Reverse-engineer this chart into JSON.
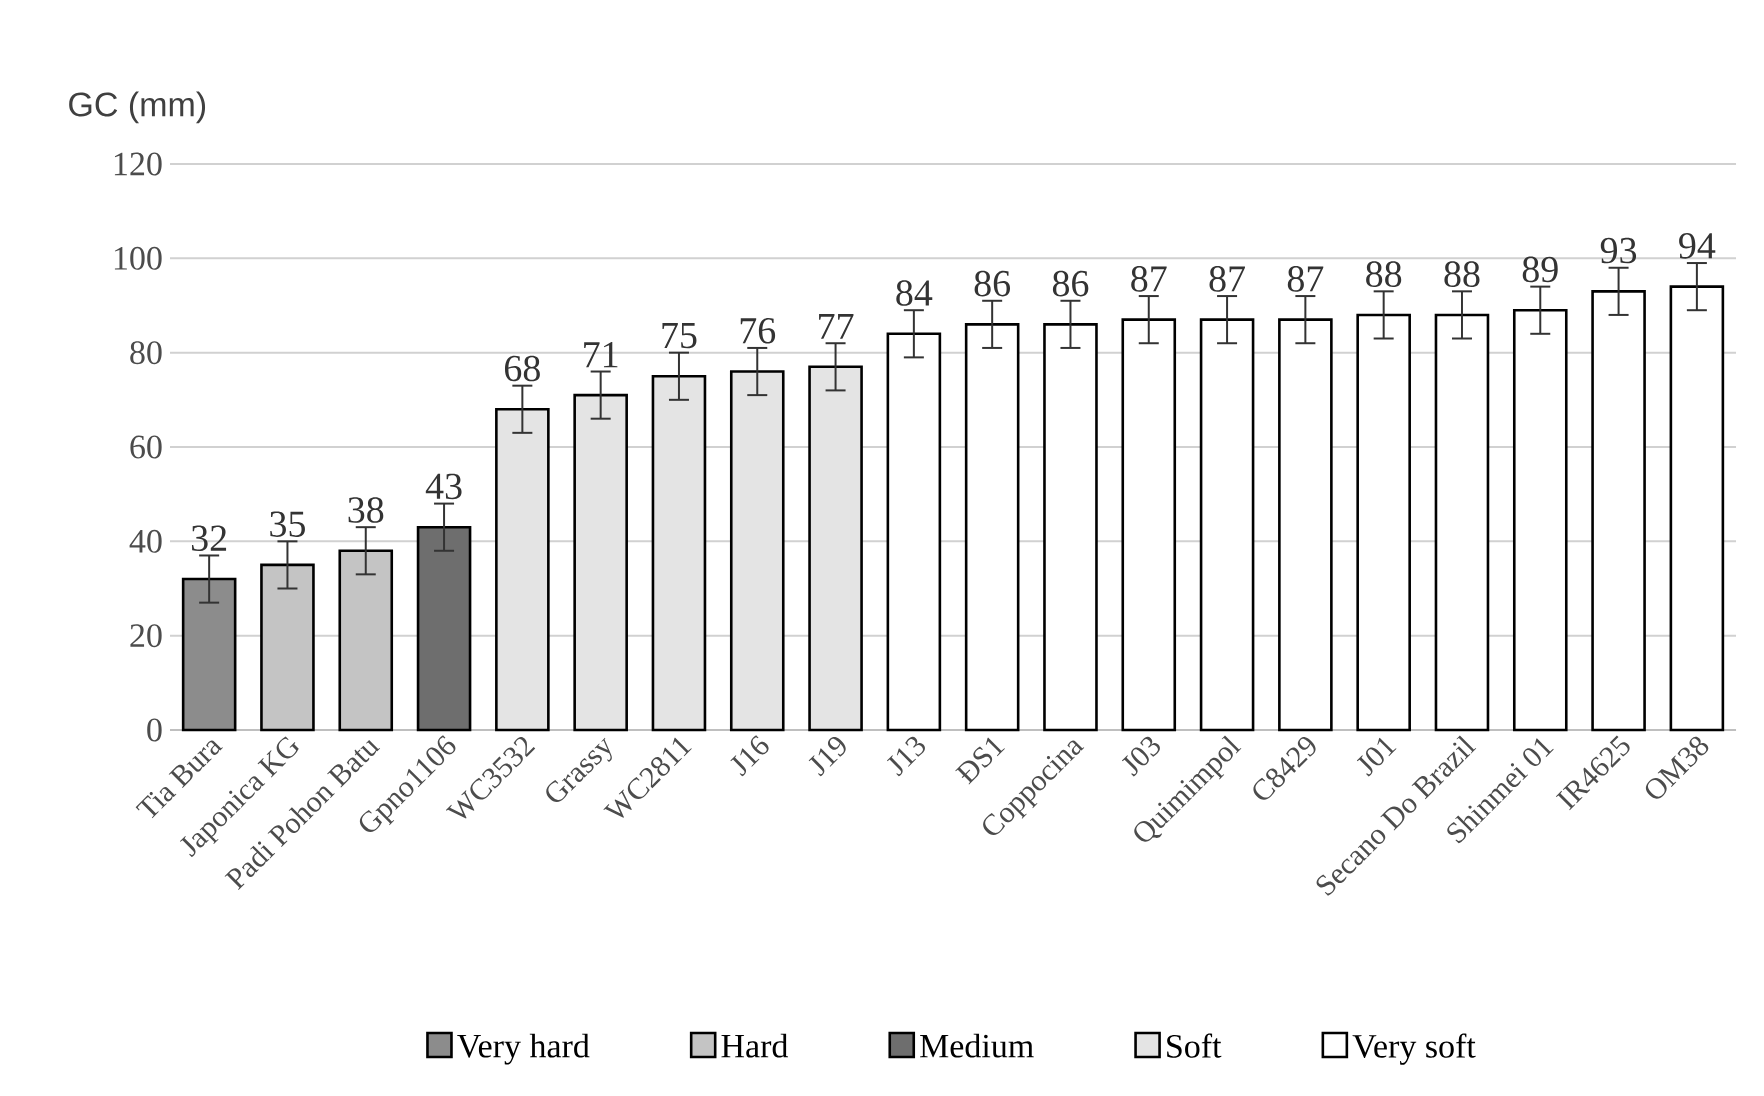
{
  "chart_data": {
    "type": "bar",
    "ylabel": "GC (mm)",
    "categories": [
      "Tia Bura",
      "Japonica KG",
      "Padi Pohon Batu",
      "Gpno1106",
      "WC3532",
      "Grassy",
      "WC2811",
      "J16",
      "J19",
      "J13",
      "ĐS1",
      "Coppocina",
      "J03",
      "Quimimpol",
      "C8429",
      "J01",
      "Secano Do Brazil",
      "Shinmei 01",
      "IR4625",
      "OM38"
    ],
    "series": [
      {
        "name": "Very hard",
        "color": "#8c8c8c",
        "values": [
          32,
          null,
          null,
          null,
          null,
          null,
          null,
          null,
          null,
          null,
          null,
          null,
          null,
          null,
          null,
          null,
          null,
          null,
          null,
          null
        ],
        "errors": [
          5,
          null,
          null,
          null,
          null,
          null,
          null,
          null,
          null,
          null,
          null,
          null,
          null,
          null,
          null,
          null,
          null,
          null,
          null,
          null
        ]
      },
      {
        "name": "Hard",
        "color": "#c4c4c4",
        "values": [
          null,
          35,
          38,
          null,
          null,
          null,
          null,
          null,
          null,
          null,
          null,
          null,
          null,
          null,
          null,
          null,
          null,
          null,
          null,
          null
        ],
        "errors": [
          null,
          5,
          5,
          null,
          null,
          null,
          null,
          null,
          null,
          null,
          null,
          null,
          null,
          null,
          null,
          null,
          null,
          null,
          null,
          null
        ]
      },
      {
        "name": "Medium",
        "color": "#6e6e6e",
        "values": [
          null,
          null,
          null,
          43,
          null,
          null,
          null,
          null,
          null,
          null,
          null,
          null,
          null,
          null,
          null,
          null,
          null,
          null,
          null,
          null
        ],
        "errors": [
          null,
          null,
          null,
          5,
          null,
          null,
          null,
          null,
          null,
          null,
          null,
          null,
          null,
          null,
          null,
          null,
          null,
          null,
          null,
          null
        ]
      },
      {
        "name": "Soft",
        "color": "#e4e4e4",
        "values": [
          null,
          null,
          null,
          null,
          68,
          71,
          75,
          76,
          77,
          null,
          null,
          null,
          null,
          null,
          null,
          null,
          null,
          null,
          null,
          null
        ],
        "errors": [
          null,
          null,
          null,
          null,
          5,
          5,
          5,
          5,
          5,
          null,
          null,
          null,
          null,
          null,
          null,
          null,
          null,
          null,
          null,
          null
        ]
      },
      {
        "name": "Very soft",
        "color": "#ffffff",
        "values": [
          null,
          null,
          null,
          null,
          null,
          null,
          null,
          null,
          null,
          84,
          86,
          86,
          87,
          87,
          87,
          88,
          88,
          89,
          93,
          94
        ],
        "errors": [
          null,
          null,
          null,
          null,
          null,
          null,
          null,
          null,
          null,
          5,
          5,
          5,
          5,
          5,
          5,
          5,
          5,
          5,
          5,
          5
        ]
      }
    ],
    "ylim": [
      0,
      120
    ],
    "yticks": [
      0,
      20,
      40,
      60,
      80,
      100,
      120
    ],
    "grid": "y",
    "legend": "bottom",
    "data_labels": true
  }
}
